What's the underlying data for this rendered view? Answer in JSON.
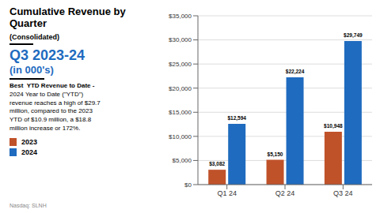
{
  "chart_data": {
    "type": "bar",
    "title": "Cumulative Revenue by Quarter",
    "subtitle": "(Consolidated)",
    "annotations": [
      "Q3 2023-24",
      "(in 000's)",
      "Best  YTD Revenue to Date -",
      "2024 Year to Date (\"YTD\")\nrevenue reaches a high of $29.7\nmillion, compared to the 2023\nYTD of $10.9 million, a $18.8\nmillion increase or 172%.",
      "Nasdaq: SLNH"
    ],
    "categories": [
      "Q1 24",
      "Q2 24",
      "Q3 24"
    ],
    "series": [
      {
        "name": "2023",
        "color": "#c0522a",
        "values": [
          3082,
          5150,
          10948
        ],
        "value_labels": [
          "$3,082",
          "$5,150",
          "$10,948"
        ]
      },
      {
        "name": "2024",
        "color": "#1f6bbf",
        "values": [
          12594,
          22224,
          29749
        ],
        "value_labels": [
          "$12,594",
          "$22,224",
          "$29,749"
        ]
      }
    ],
    "ylim": [
      0,
      35000
    ],
    "yticks": [
      {
        "value": 0,
        "label": "$0"
      },
      {
        "value": 5000,
        "label": "$5,000"
      },
      {
        "value": 10000,
        "label": "$10,000"
      },
      {
        "value": 15000,
        "label": "$15,000"
      },
      {
        "value": 20000,
        "label": "$20,000"
      },
      {
        "value": 25000,
        "label": "$25,000"
      },
      {
        "value": 30000,
        "label": "$30,000"
      },
      {
        "value": 35000,
        "label": "$35,000"
      }
    ],
    "grid": true,
    "data_labels": true
  }
}
